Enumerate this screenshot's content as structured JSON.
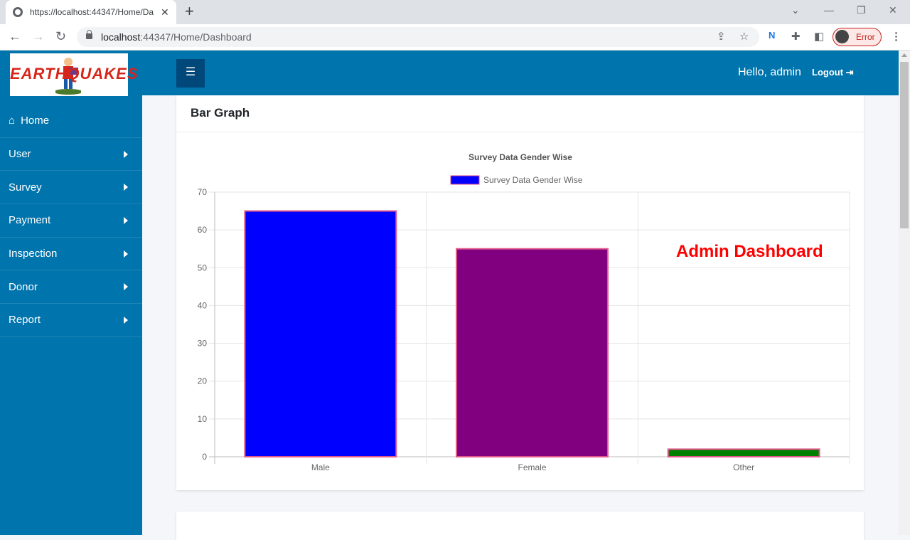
{
  "browser": {
    "tab_title": "https://localhost:44347/Home/Da",
    "url_host": "localhost",
    "url_rest": ":44347/Home/Dashboard",
    "profile_label": "Error"
  },
  "app": {
    "logo_text": "EARTHQUAKES",
    "greeting": "Hello, admin",
    "logout_label": "Logout"
  },
  "sidebar": {
    "items": [
      {
        "label": "Home"
      },
      {
        "label": "User"
      },
      {
        "label": "Survey"
      },
      {
        "label": "Payment"
      },
      {
        "label": "Inspection"
      },
      {
        "label": "Donor"
      },
      {
        "label": "Report"
      }
    ]
  },
  "card": {
    "title": "Bar Graph",
    "overlay_text": "Admin Dashboard"
  },
  "chart_data": {
    "type": "bar",
    "title": "Survey Data Gender Wise",
    "categories": [
      "Male",
      "Female",
      "Other"
    ],
    "series": [
      {
        "name": "Survey Data Gender Wise",
        "values": [
          65,
          55,
          2
        ],
        "colors": [
          "#0000ff",
          "#800080",
          "#008000"
        ],
        "border": "#e0578a"
      }
    ],
    "ylim": [
      0,
      70
    ],
    "yticks": [
      0,
      10,
      20,
      30,
      40,
      50,
      60,
      70
    ],
    "legend": "top",
    "grid": true,
    "legend_color": "#0000ff"
  }
}
